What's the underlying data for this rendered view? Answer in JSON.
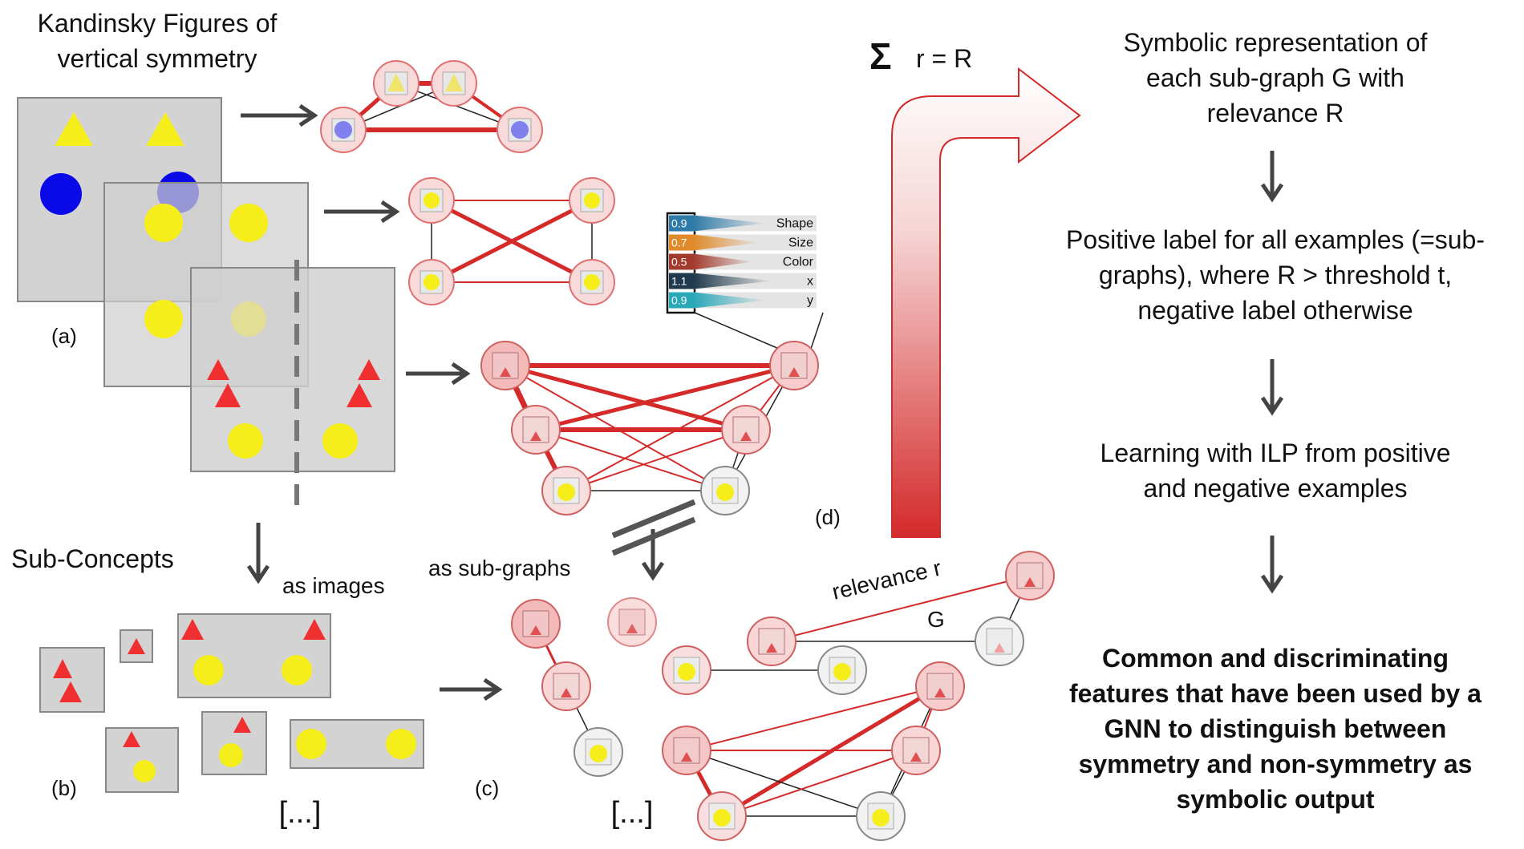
{
  "left": {
    "title_line1": "Kandinsky Figures of",
    "title_line2": "vertical symmetry",
    "label_a": "(a)",
    "subconcepts_title": "Sub-Concepts",
    "as_images": "as images",
    "label_b": "(b)",
    "ellipsis_b": "[...]"
  },
  "middle": {
    "as_subgraphs": "as sub-graphs",
    "label_c": "(c)",
    "ellipsis_c": "[...]",
    "label_d": "(d)",
    "relevance_label": "relevance r",
    "graph_label": "G",
    "features": [
      {
        "value": "0.9",
        "name": "Shape",
        "color": "#2e7aa8"
      },
      {
        "value": "0.7",
        "name": "Size",
        "color": "#e08a2a"
      },
      {
        "value": "0.5",
        "name": "Color",
        "color": "#a33a2e"
      },
      {
        "value": "1.1",
        "name": "x",
        "color": "#1f3a4c"
      },
      {
        "value": "0.9",
        "name": "y",
        "color": "#2aa8b8"
      }
    ]
  },
  "right": {
    "sum_symbol": "Σ",
    "sum_text": "r = R",
    "step1_line1": "Symbolic representation of",
    "step1_line2": "each sub-graph G with",
    "step1_line3": "relevance R",
    "step2_line1": "Positive label for all examples (=sub-",
    "step2_line2": "graphs), where R > threshold t,",
    "step2_line3": "negative label otherwise",
    "step3_line1": "Learning with ILP from positive",
    "step3_line2": "and negative examples",
    "result_line1": "Common and discriminating",
    "result_line2": "features that have been used by a",
    "result_line3": "GNN to distinguish between",
    "result_line4": "symmetry and non-symmetry as",
    "result_line5": "symbolic output"
  },
  "colors": {
    "relevance_red": "#d42a2a",
    "shape_yellow": "#f5ee1a",
    "shape_blue": "#0a0ae8",
    "panel_gray": "#d3d3d3",
    "arrow_gray": "#444444"
  }
}
